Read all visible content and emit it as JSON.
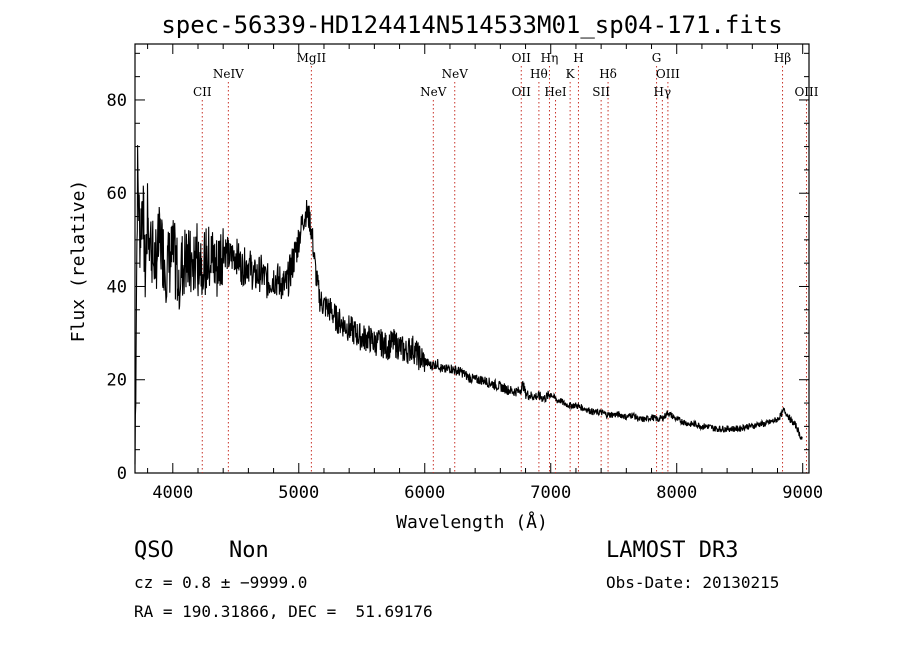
{
  "chart_data": {
    "type": "line",
    "title": "spec-56339-HD124414N514533M01_sp04-171.fits",
    "xlabel": "Wavelength (Å)",
    "ylabel": "Flux (relative)",
    "xlim": [
      3700,
      9050
    ],
    "ylim": [
      0,
      92
    ],
    "xticks": [
      4000,
      5000,
      6000,
      7000,
      8000,
      9000
    ],
    "yticks": [
      0,
      20,
      40,
      60,
      80
    ],
    "grid": false,
    "series": [
      {
        "name": "spectrum",
        "x": [
          3700,
          3720,
          3740,
          3760,
          3780,
          3800,
          3850,
          3900,
          3950,
          4000,
          4050,
          4100,
          4150,
          4200,
          4250,
          4300,
          4350,
          4400,
          4450,
          4500,
          4550,
          4600,
          4650,
          4700,
          4750,
          4800,
          4850,
          4900,
          4950,
          5000,
          5030,
          5060,
          5090,
          5110,
          5130,
          5150,
          5170,
          5200,
          5250,
          5300,
          5350,
          5400,
          5450,
          5500,
          5550,
          5600,
          5650,
          5700,
          5750,
          5800,
          5850,
          5900,
          5950,
          6000,
          6050,
          6100,
          6150,
          6200,
          6250,
          6300,
          6350,
          6400,
          6450,
          6500,
          6550,
          6600,
          6650,
          6700,
          6750,
          6780,
          6800,
          6850,
          6900,
          6950,
          7000,
          7050,
          7080,
          7100,
          7150,
          7200,
          7250,
          7300,
          7350,
          7400,
          7450,
          7500,
          7550,
          7600,
          7650,
          7700,
          7750,
          7800,
          7850,
          7900,
          7930,
          7950,
          8000,
          8050,
          8100,
          8150,
          8200,
          8250,
          8300,
          8350,
          8400,
          8450,
          8500,
          8550,
          8600,
          8650,
          8700,
          8750,
          8800,
          8830,
          8850,
          8880,
          8900,
          8950,
          8980,
          9000
        ],
        "values": [
          2,
          65,
          50,
          60,
          42,
          55,
          45,
          50,
          44,
          47,
          43,
          46,
          44,
          48,
          45,
          46,
          44,
          49,
          46,
          47,
          44,
          45,
          42,
          43,
          41,
          42,
          41,
          40,
          45,
          50,
          54,
          56,
          54,
          50,
          44,
          40,
          37,
          36,
          35,
          33,
          32,
          31,
          30,
          29,
          29,
          28,
          28,
          27,
          28,
          27,
          26,
          27,
          25,
          24,
          23,
          23.5,
          22,
          22.5,
          22,
          21.5,
          20.5,
          20,
          20,
          19.5,
          19,
          18.5,
          18,
          17.5,
          17.5,
          19,
          17,
          16.5,
          16.5,
          16,
          17,
          15.5,
          15.5,
          15,
          14.5,
          14.5,
          14,
          13.5,
          13,
          13,
          12.5,
          12.5,
          12.5,
          12,
          12.5,
          11.5,
          11.5,
          12,
          11.5,
          12,
          13,
          12.5,
          11.5,
          11,
          10.5,
          10.5,
          10,
          10,
          9.5,
          9.5,
          9.5,
          9.5,
          9.5,
          10,
          10,
          10.5,
          10.5,
          11,
          11.5,
          12.5,
          13.5,
          12.5,
          11.5,
          10,
          8,
          7
        ]
      }
    ],
    "lines": [
      {
        "name": "CII",
        "wavelength": 4234,
        "row": 2
      },
      {
        "name": "NeIV",
        "wavelength": 4441,
        "row": 1
      },
      {
        "name": "MgII",
        "wavelength": 5100,
        "row": 0
      },
      {
        "name": "NeV",
        "wavelength": 6068,
        "row": 2
      },
      {
        "name": "NeV",
        "wavelength": 6238,
        "row": 1
      },
      {
        "name": "OII",
        "wavelength": 6766,
        "row": 0
      },
      {
        "name": "OII",
        "wavelength": 6766,
        "row": 2
      },
      {
        "name": "Hθ",
        "wavelength": 6906,
        "row": 1
      },
      {
        "name": "Hη",
        "wavelength": 6990,
        "row": 0
      },
      {
        "name": "HeI",
        "wavelength": 7038,
        "row": 2
      },
      {
        "name": "K",
        "wavelength": 7154,
        "row": 1
      },
      {
        "name": "H",
        "wavelength": 7220,
        "row": 0
      },
      {
        "name": "Hδ",
        "wavelength": 7455,
        "row": 1
      },
      {
        "name": "SII",
        "wavelength": 7400,
        "row": 2
      },
      {
        "name": "G",
        "wavelength": 7840,
        "row": 0
      },
      {
        "name": "OIII",
        "wavelength": 7930,
        "row": 1
      },
      {
        "name": "Hγ",
        "wavelength": 7886,
        "row": 2
      },
      {
        "name": "Hβ",
        "wavelength": 8840,
        "row": 0
      },
      {
        "name": "OIII",
        "wavelength": 9030,
        "row": 2
      }
    ]
  },
  "info": {
    "class": "QSO",
    "subclass": "Non",
    "survey": "LAMOST DR3",
    "cz": "cz = 0.8 ± −9999.0",
    "obs_date": "Obs-Date: 20130215",
    "coords": "RA = 190.31866, DEC =  51.69176"
  }
}
